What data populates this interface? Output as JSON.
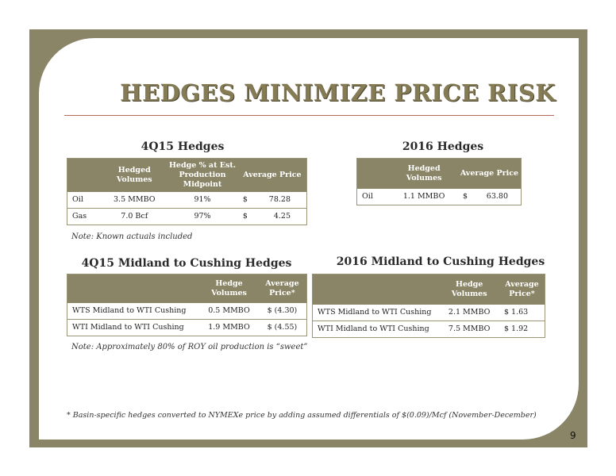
{
  "title": "HEDGES MINIMIZE PRICE RISK",
  "q4_hedges": {
    "title": "4Q15 Hedges",
    "headers": [
      "",
      "Hedged Volumes",
      "Hedge % at Est. Production Midpoint",
      "Average Price"
    ],
    "rows": [
      {
        "label": "Oil",
        "volume": "3.5  MMBO",
        "pct": "91%",
        "cur": "$",
        "price": "78.28"
      },
      {
        "label": "Gas",
        "volume": "7.0  Bcf",
        "pct": "97%",
        "cur": "$",
        "price": "4.25"
      }
    ],
    "note": "Note: Known actuals included"
  },
  "y2016_hedges": {
    "title": "2016 Hedges",
    "headers": [
      "",
      "Hedged Volumes",
      "Average Price"
    ],
    "rows": [
      {
        "label": "Oil",
        "volume": "1.1 MMBO",
        "cur": "$",
        "price": "63.80"
      }
    ]
  },
  "q4_midland": {
    "title": "4Q15 Midland to Cushing Hedges",
    "headers": [
      "",
      "Hedge Volumes",
      "Average Price*"
    ],
    "rows": [
      {
        "label": "WTS Midland to WTI Cushing",
        "volume": "0.5 MMBO",
        "price": "$ (4.30)"
      },
      {
        "label": "WTI Midland to WTI Cushing",
        "volume": "1.9 MMBO",
        "price": "$ (4.55)"
      }
    ],
    "note": "Note: Approximately 80% of ROY oil production is “sweet”"
  },
  "y2016_midland": {
    "title": "2016 Midland to Cushing Hedges",
    "headers": [
      "",
      "Hedge Volumes",
      "Average Price*"
    ],
    "rows": [
      {
        "label": "WTS Midland to WTI Cushing",
        "volume": "2.1 MMBO",
        "price": "$ 1.63"
      },
      {
        "label": "WTI Midland to WTI Cushing",
        "volume": "7.5 MMBO",
        "price": "$ 1.92"
      }
    ]
  },
  "footnote": "*  Basin-specific hedges converted to NYMEXe price by adding assumed differentials of $(0.09)/Mcf (November-December)",
  "page_number": "9",
  "colors": {
    "frame": "#8a8567",
    "header": "#8a8567",
    "title": "#857c55",
    "rule": "#b56b55"
  }
}
